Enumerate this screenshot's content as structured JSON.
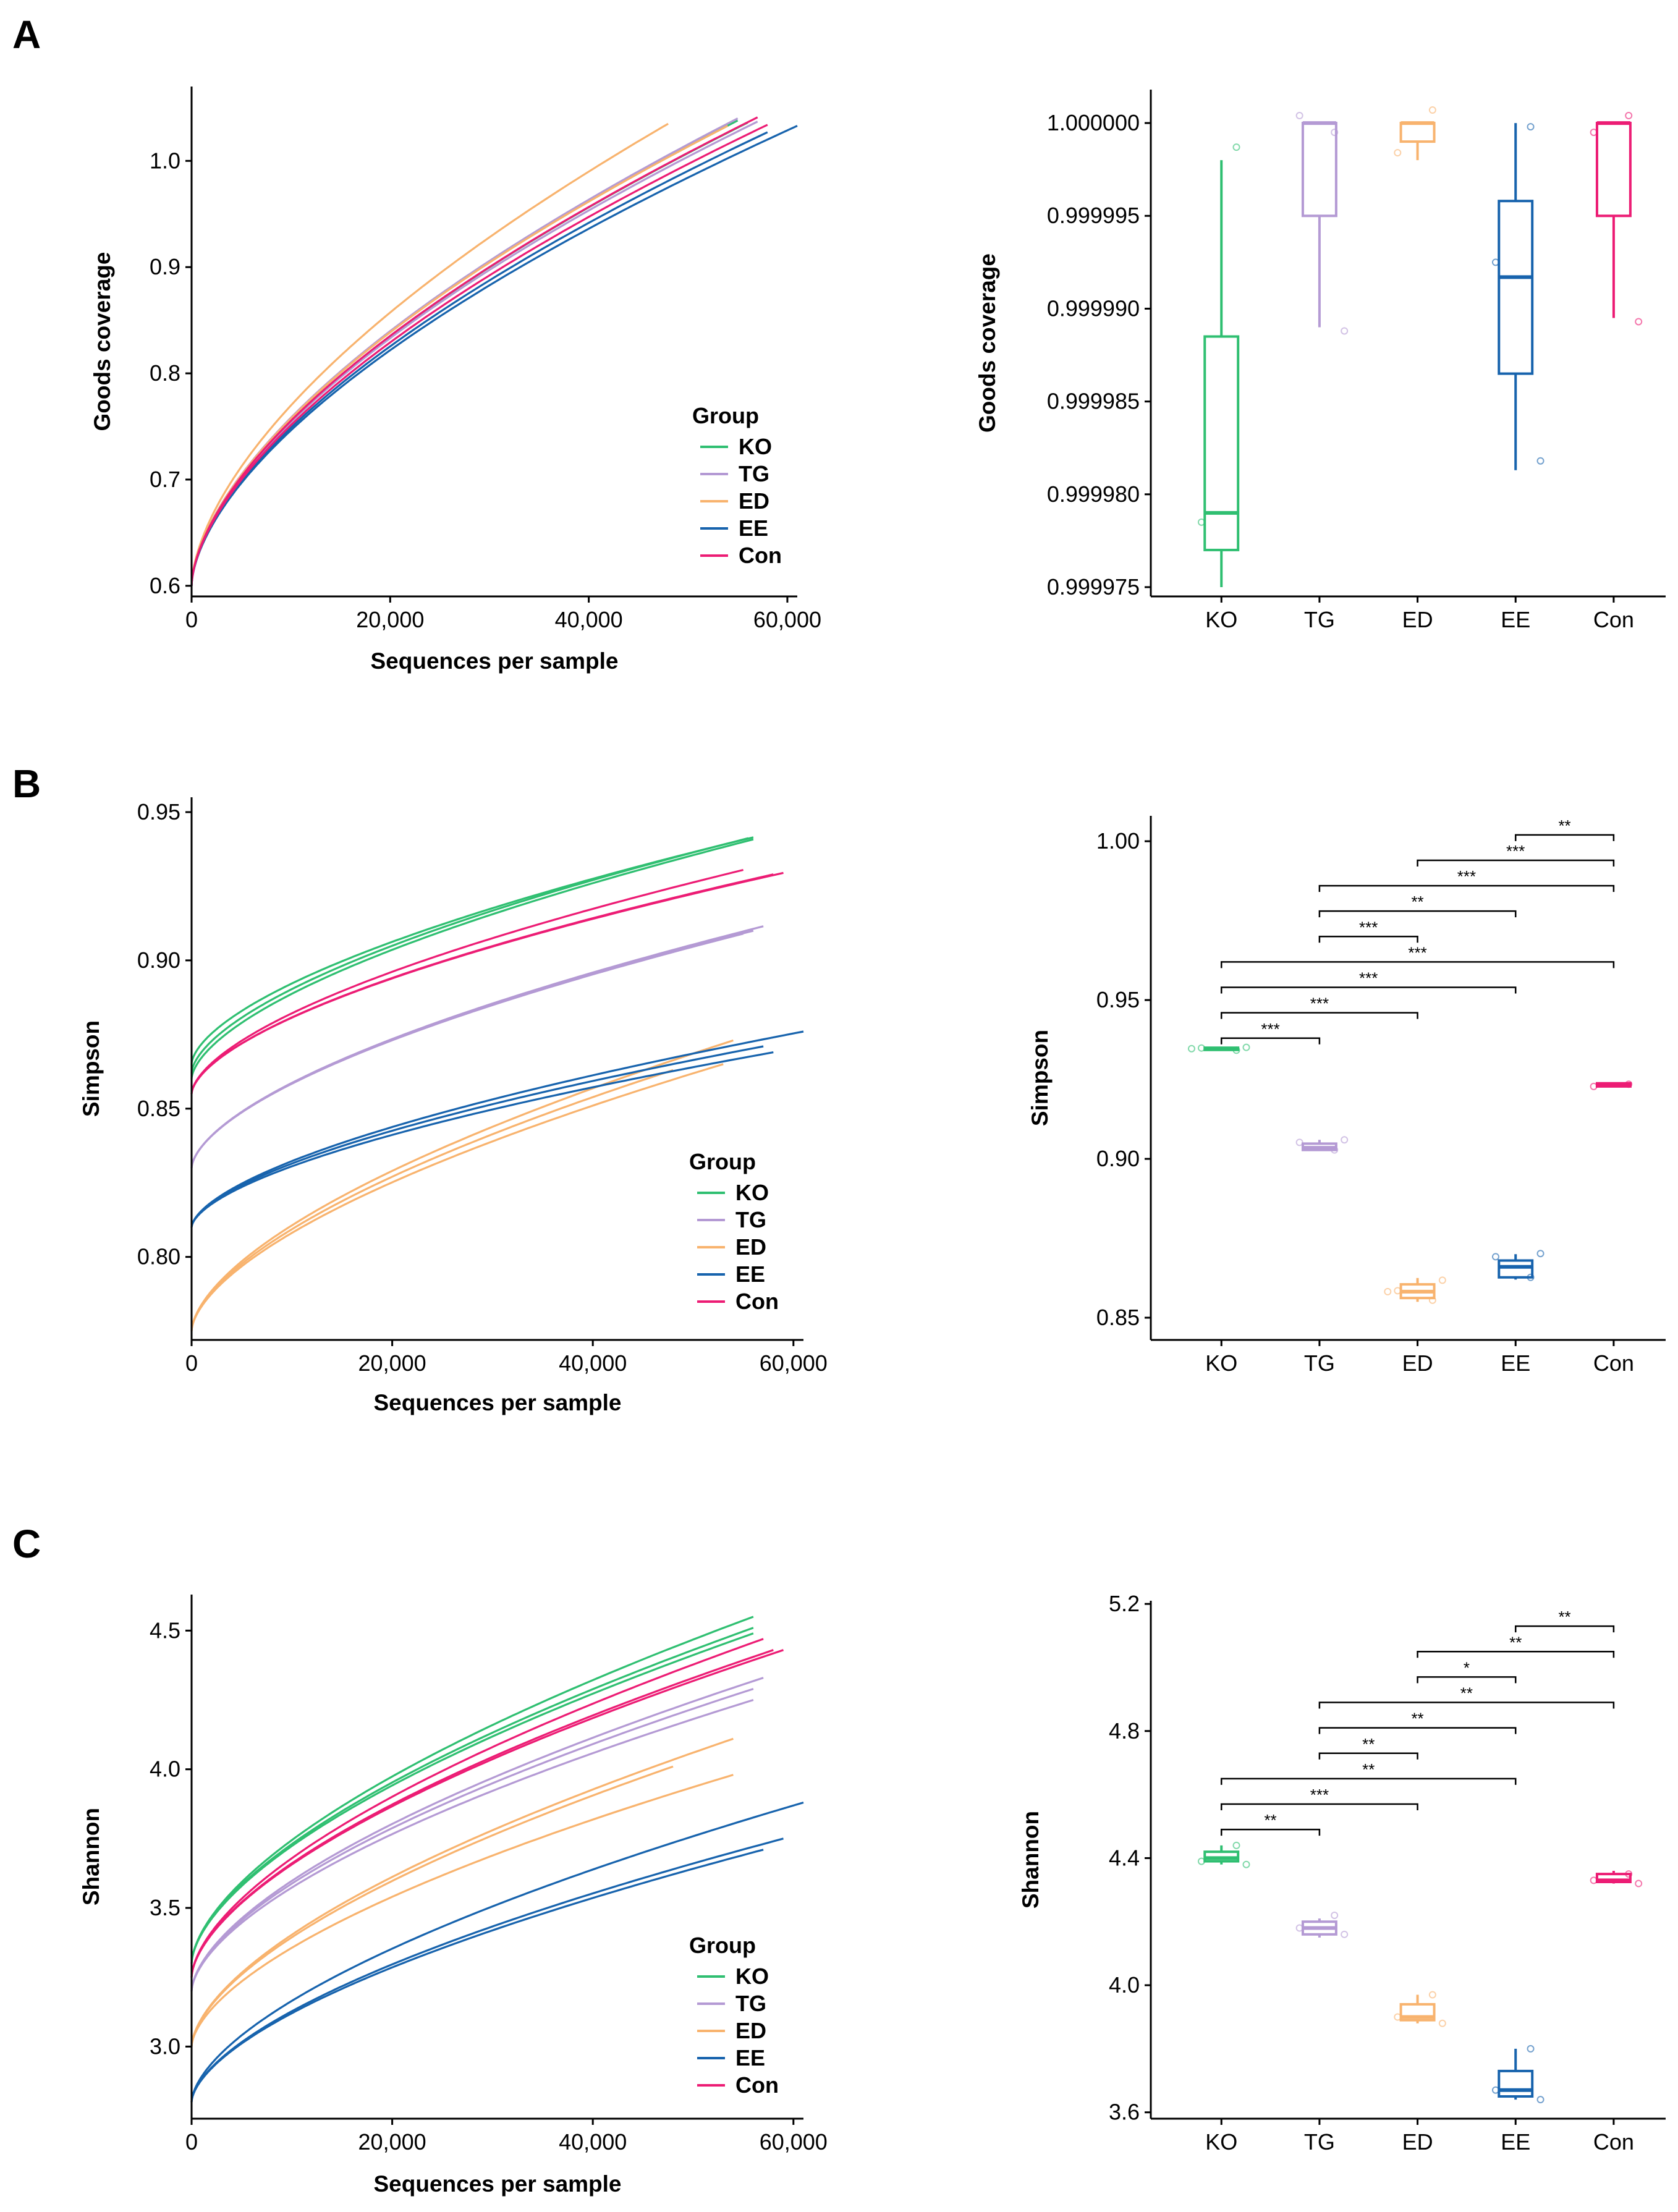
{
  "figure": {
    "panel_labels": [
      "A",
      "B",
      "C"
    ]
  },
  "colors": {
    "KO": "#2fbf71",
    "TG": "#b49ad4",
    "ED": "#f8b36e",
    "EE": "#1763ad",
    "Con": "#ec1c74"
  },
  "chart_data": [
    {
      "id": "A_rarefaction",
      "type": "line",
      "title": "",
      "xlabel": "Sequences per sample",
      "ylabel": "Goods coverage",
      "xlim": [
        0,
        61000
      ],
      "ylim": [
        0.59,
        1.07
      ],
      "x_ticks": [
        0,
        20000,
        40000,
        60000
      ],
      "x_tick_labels": [
        "0",
        "20,000",
        "40,000",
        "60,000"
      ],
      "y_ticks": [
        0.6,
        0.7,
        0.8,
        0.9,
        1.0
      ],
      "y_tick_labels": [
        "0.6",
        "0.7",
        "0.8",
        "0.9",
        "1.0"
      ],
      "legend": {
        "title": "Group",
        "entries": [
          "KO",
          "TG",
          "ED",
          "EE",
          "Con"
        ],
        "position": "bottom-right"
      },
      "series": [
        {
          "name": "KO",
          "end_x": 55000,
          "end_value": 1.038,
          "start_value": 0.6
        },
        {
          "name": "KO",
          "end_x": 56000,
          "end_value": 1.036,
          "start_value": 0.6
        },
        {
          "name": "TG",
          "end_x": 55000,
          "end_value": 1.04,
          "start_value": 0.6
        },
        {
          "name": "TG",
          "end_x": 57000,
          "end_value": 1.037,
          "start_value": 0.6
        },
        {
          "name": "ED",
          "end_x": 48000,
          "end_value": 1.035,
          "start_value": 0.6
        },
        {
          "name": "ED",
          "end_x": 54000,
          "end_value": 1.033,
          "start_value": 0.6
        },
        {
          "name": "EE",
          "end_x": 61000,
          "end_value": 1.033,
          "start_value": 0.6
        },
        {
          "name": "EE",
          "end_x": 58000,
          "end_value": 1.027,
          "start_value": 0.6
        },
        {
          "name": "Con",
          "end_x": 57000,
          "end_value": 1.041,
          "start_value": 0.6
        },
        {
          "name": "Con",
          "end_x": 58000,
          "end_value": 1.034,
          "start_value": 0.6
        }
      ]
    },
    {
      "id": "A_box",
      "type": "box",
      "xlabel": "",
      "ylabel": "Goods coverage",
      "categories": [
        "KO",
        "TG",
        "ED",
        "EE",
        "Con"
      ],
      "ylim": [
        0.9999745,
        1.0000018
      ],
      "y_ticks": [
        0.999975,
        0.99998,
        0.999985,
        0.99999,
        0.999995,
        1.0
      ],
      "y_tick_labels": [
        "0.999975",
        "0.999980",
        "0.999985",
        "0.999990",
        "0.999995",
        "1.000000"
      ],
      "boxes": [
        {
          "name": "KO",
          "whisker_low": 0.999975,
          "q1": 0.999977,
          "median": 0.999979,
          "q3": 0.9999885,
          "whisker_high": 0.999998,
          "points": [
            0.9999987,
            0.9999785
          ]
        },
        {
          "name": "TG",
          "whisker_low": 0.999989,
          "q1": 0.999995,
          "median": 1.0,
          "q3": 1.0,
          "whisker_high": 1.0,
          "points": [
            0.9999995,
            1.0000004,
            0.9999888
          ]
        },
        {
          "name": "ED",
          "whisker_low": 0.999998,
          "q1": 0.999999,
          "median": 1.0,
          "q3": 1.0,
          "whisker_high": 1.0,
          "points": [
            1.0000007,
            0.9999984
          ]
        },
        {
          "name": "EE",
          "whisker_low": 0.9999813,
          "q1": 0.9999865,
          "median": 0.9999917,
          "q3": 0.9999958,
          "whisker_high": 1.0,
          "points": [
            0.9999998,
            0.9999925,
            0.9999818
          ]
        },
        {
          "name": "Con",
          "whisker_low": 0.9999895,
          "q1": 0.999995,
          "median": 1.0,
          "q3": 1.0,
          "whisker_high": 1.0,
          "points": [
            1.0000004,
            0.9999995,
            0.9999893
          ]
        }
      ],
      "significance": []
    },
    {
      "id": "B_rarefaction",
      "type": "line",
      "xlabel": "Sequences per sample",
      "ylabel": "Simpson",
      "xlim": [
        0,
        61000
      ],
      "ylim": [
        0.772,
        0.955
      ],
      "x_ticks": [
        0,
        20000,
        40000,
        60000
      ],
      "x_tick_labels": [
        "0",
        "20,000",
        "40,000",
        "60,000"
      ],
      "y_ticks": [
        0.8,
        0.85,
        0.9,
        0.95
      ],
      "y_tick_labels": [
        "0.80",
        "0.85",
        "0.90",
        "0.95"
      ],
      "legend": {
        "title": "Group",
        "entries": [
          "KO",
          "TG",
          "ED",
          "EE",
          "Con"
        ],
        "position": "bottom-right"
      },
      "series": [
        {
          "name": "KO",
          "end_x": 56000,
          "end_value": 0.9415,
          "start_value": 0.865
        },
        {
          "name": "KO",
          "end_x": 56000,
          "end_value": 0.9408,
          "start_value": 0.86
        },
        {
          "name": "KO",
          "end_x": 55500,
          "end_value": 0.9412,
          "start_value": 0.862
        },
        {
          "name": "TG",
          "end_x": 57000,
          "end_value": 0.9115,
          "start_value": 0.83
        },
        {
          "name": "TG",
          "end_x": 55000,
          "end_value": 0.909,
          "start_value": 0.83
        },
        {
          "name": "TG",
          "end_x": 56000,
          "end_value": 0.91,
          "start_value": 0.83
        },
        {
          "name": "ED",
          "end_x": 48000,
          "end_value": 0.863,
          "start_value": 0.775
        },
        {
          "name": "ED",
          "end_x": 53000,
          "end_value": 0.865,
          "start_value": 0.775
        },
        {
          "name": "ED",
          "end_x": 54000,
          "end_value": 0.873,
          "start_value": 0.775
        },
        {
          "name": "EE",
          "end_x": 61000,
          "end_value": 0.876,
          "start_value": 0.81
        },
        {
          "name": "EE",
          "end_x": 58000,
          "end_value": 0.869,
          "start_value": 0.81
        },
        {
          "name": "EE",
          "end_x": 57000,
          "end_value": 0.871,
          "start_value": 0.81
        },
        {
          "name": "Con",
          "end_x": 59000,
          "end_value": 0.9295,
          "start_value": 0.855
        },
        {
          "name": "Con",
          "end_x": 55000,
          "end_value": 0.9305,
          "start_value": 0.855
        },
        {
          "name": "Con",
          "end_x": 58000,
          "end_value": 0.929,
          "start_value": 0.855
        }
      ]
    },
    {
      "id": "B_box",
      "type": "box",
      "xlabel": "",
      "ylabel": "Simpson",
      "categories": [
        "KO",
        "TG",
        "ED",
        "EE",
        "Con"
      ],
      "ylim": [
        0.843,
        1.008
      ],
      "y_ticks": [
        0.85,
        0.9,
        0.95,
        1.0
      ],
      "y_tick_labels": [
        "0.85",
        "0.90",
        "0.95",
        "1.00"
      ],
      "boxes": [
        {
          "name": "KO",
          "whisker_low": 0.934,
          "q1": 0.9343,
          "median": 0.9346,
          "q3": 0.935,
          "whisker_high": 0.9352,
          "points": [
            0.9342,
            0.9349,
            0.9351,
            0.9347
          ]
        },
        {
          "name": "TG",
          "whisker_low": 0.9025,
          "q1": 0.9028,
          "median": 0.9035,
          "q3": 0.9048,
          "whisker_high": 0.906,
          "points": [
            0.9028,
            0.9052,
            0.906
          ]
        },
        {
          "name": "ED",
          "whisker_low": 0.855,
          "q1": 0.8562,
          "median": 0.8582,
          "q3": 0.8605,
          "whisker_high": 0.8625,
          "points": [
            0.8555,
            0.8585,
            0.8618,
            0.8582
          ]
        },
        {
          "name": "EE",
          "whisker_low": 0.862,
          "q1": 0.8627,
          "median": 0.866,
          "q3": 0.868,
          "whisker_high": 0.87,
          "points": [
            0.8627,
            0.8692,
            0.8702
          ]
        },
        {
          "name": "Con",
          "whisker_low": 0.9225,
          "q1": 0.9228,
          "median": 0.9232,
          "q3": 0.9238,
          "whisker_high": 0.924,
          "points": [
            0.9235,
            0.9228
          ]
        }
      ],
      "significance": [
        {
          "from": "EE",
          "to": "Con",
          "y": 1.002,
          "label": "**"
        },
        {
          "from": "ED",
          "to": "Con",
          "y": 0.994,
          "label": "***"
        },
        {
          "from": "TG",
          "to": "Con",
          "y": 0.986,
          "label": "***"
        },
        {
          "from": "TG",
          "to": "EE",
          "y": 0.978,
          "label": "**"
        },
        {
          "from": "TG",
          "to": "ED",
          "y": 0.97,
          "label": "***"
        },
        {
          "from": "KO",
          "to": "Con",
          "y": 0.962,
          "label": "***"
        },
        {
          "from": "KO",
          "to": "EE",
          "y": 0.954,
          "label": "***"
        },
        {
          "from": "KO",
          "to": "ED",
          "y": 0.946,
          "label": "***"
        },
        {
          "from": "KO",
          "to": "TG",
          "y": 0.938,
          "label": "***"
        }
      ]
    },
    {
      "id": "C_rarefaction",
      "type": "line",
      "xlabel": "Sequences per sample",
      "ylabel": "Shannon",
      "xlim": [
        0,
        61000
      ],
      "ylim": [
        2.74,
        4.63
      ],
      "x_ticks": [
        0,
        20000,
        40000,
        60000
      ],
      "x_tick_labels": [
        "0",
        "20,000",
        "40,000",
        "60,000"
      ],
      "y_ticks": [
        3.0,
        3.5,
        4.0,
        4.5
      ],
      "y_tick_labels": [
        "3.0",
        "3.5",
        "4.0",
        "4.5"
      ],
      "legend": {
        "title": "Group",
        "entries": [
          "KO",
          "TG",
          "ED",
          "EE",
          "Con"
        ],
        "position": "bottom-right"
      },
      "series": [
        {
          "name": "KO",
          "end_x": 56000,
          "end_value": 4.55,
          "start_value": 3.3
        },
        {
          "name": "KO",
          "end_x": 56000,
          "end_value": 4.51,
          "start_value": 3.3
        },
        {
          "name": "KO",
          "end_x": 56000,
          "end_value": 4.49,
          "start_value": 3.3
        },
        {
          "name": "TG",
          "end_x": 57000,
          "end_value": 4.33,
          "start_value": 3.2
        },
        {
          "name": "TG",
          "end_x": 56000,
          "end_value": 4.29,
          "start_value": 3.2
        },
        {
          "name": "TG",
          "end_x": 56000,
          "end_value": 4.25,
          "start_value": 3.2
        },
        {
          "name": "ED",
          "end_x": 54000,
          "end_value": 4.11,
          "start_value": 3.0
        },
        {
          "name": "ED",
          "end_x": 48000,
          "end_value": 4.01,
          "start_value": 3.0
        },
        {
          "name": "ED",
          "end_x": 54000,
          "end_value": 3.98,
          "start_value": 3.0
        },
        {
          "name": "EE",
          "end_x": 61000,
          "end_value": 3.88,
          "start_value": 2.8
        },
        {
          "name": "EE",
          "end_x": 59000,
          "end_value": 3.75,
          "start_value": 2.8
        },
        {
          "name": "EE",
          "end_x": 57000,
          "end_value": 3.71,
          "start_value": 2.8
        },
        {
          "name": "Con",
          "end_x": 57000,
          "end_value": 4.47,
          "start_value": 3.25
        },
        {
          "name": "Con",
          "end_x": 59000,
          "end_value": 4.43,
          "start_value": 3.25
        },
        {
          "name": "Con",
          "end_x": 58000,
          "end_value": 4.43,
          "start_value": 3.25
        }
      ]
    },
    {
      "id": "C_box",
      "type": "box",
      "xlabel": "",
      "ylabel": "Shannon",
      "categories": [
        "KO",
        "TG",
        "ED",
        "EE",
        "Con"
      ],
      "ylim": [
        3.58,
        5.21
      ],
      "y_ticks": [
        3.6,
        4.0,
        4.4,
        4.8,
        5.2
      ],
      "y_tick_labels": [
        "3.6",
        "4.0",
        "4.4",
        "4.8",
        "5.2"
      ],
      "boxes": [
        {
          "name": "KO",
          "whisker_low": 4.38,
          "q1": 4.39,
          "median": 4.4,
          "q3": 4.42,
          "whisker_high": 4.44,
          "points": [
            4.44,
            4.39,
            4.38
          ]
        },
        {
          "name": "TG",
          "whisker_low": 4.15,
          "q1": 4.16,
          "median": 4.18,
          "q3": 4.2,
          "whisker_high": 4.21,
          "points": [
            4.22,
            4.18,
            4.16
          ]
        },
        {
          "name": "ED",
          "whisker_low": 3.88,
          "q1": 3.89,
          "median": 3.9,
          "q3": 3.94,
          "whisker_high": 3.97,
          "points": [
            3.97,
            3.9,
            3.88
          ]
        },
        {
          "name": "EE",
          "whisker_low": 3.64,
          "q1": 3.65,
          "median": 3.67,
          "q3": 3.73,
          "whisker_high": 3.8,
          "points": [
            3.8,
            3.67,
            3.64
          ]
        },
        {
          "name": "Con",
          "whisker_low": 4.32,
          "q1": 4.325,
          "median": 4.33,
          "q3": 4.35,
          "whisker_high": 4.36,
          "points": [
            4.35,
            4.33,
            4.32
          ]
        }
      ],
      "significance": [
        {
          "from": "EE",
          "to": "Con",
          "y": 5.13,
          "label": "**"
        },
        {
          "from": "ED",
          "to": "Con",
          "y": 5.05,
          "label": "**"
        },
        {
          "from": "ED",
          "to": "EE",
          "y": 4.97,
          "label": "*"
        },
        {
          "from": "TG",
          "to": "Con",
          "y": 4.89,
          "label": "**"
        },
        {
          "from": "TG",
          "to": "EE",
          "y": 4.81,
          "label": "**"
        },
        {
          "from": "TG",
          "to": "ED",
          "y": 4.73,
          "label": "**"
        },
        {
          "from": "KO",
          "to": "EE",
          "y": 4.65,
          "label": "**"
        },
        {
          "from": "KO",
          "to": "ED",
          "y": 4.57,
          "label": "***"
        },
        {
          "from": "KO",
          "to": "TG",
          "y": 4.49,
          "label": "**"
        }
      ]
    }
  ]
}
